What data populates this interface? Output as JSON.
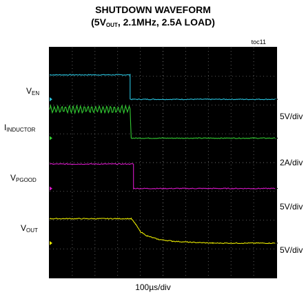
{
  "title_line1": "SHUTDOWN WAVEFORM",
  "title_line2_prefix": "(5V",
  "title_line2_sub": "OUT",
  "title_line2_suffix": ", 2.1MHz, 2.5A LOAD)",
  "figure_tag": "toc11",
  "x_scale": "100µs/div",
  "colors": {
    "background": "#000000",
    "frame": "#000000",
    "grid": "#c8c8c8",
    "grid_center": "#ffffff"
  },
  "chart_data": {
    "type": "line",
    "grid": true,
    "x_divisions": 10,
    "y_divisions": 8,
    "x_scale": "100µs/div",
    "series": [
      {
        "name_main": "V",
        "name_sub": "EN",
        "scale": "5V/div",
        "color": "#29c4df",
        "x": [
          0,
          3.55,
          3.55,
          10
        ],
        "y": [
          7.05,
          7.05,
          6.2,
          6.2
        ],
        "noise": "low"
      },
      {
        "name_main": "I",
        "name_sub": "INDUCTOR",
        "scale": "2A/div",
        "color": "#33cc33",
        "x": [
          0,
          3.55,
          3.6,
          10
        ],
        "y": [
          5.85,
          5.85,
          4.85,
          4.85
        ],
        "noise": "ripple"
      },
      {
        "name_main": "V",
        "name_sub": "PGOOD",
        "scale": "5V/div",
        "color": "#d818c8",
        "x": [
          0,
          3.7,
          3.7,
          10
        ],
        "y": [
          3.95,
          3.95,
          3.1,
          3.1
        ],
        "noise": "low"
      },
      {
        "name_main": "V",
        "name_sub": "OUT",
        "scale": "5V/div",
        "color": "#e8e800",
        "x": [
          0,
          3.6,
          3.8,
          4.0,
          4.3,
          4.8,
          5.4,
          6.2,
          7.2,
          10
        ],
        "y": [
          2.05,
          2.05,
          1.85,
          1.6,
          1.45,
          1.33,
          1.27,
          1.23,
          1.2,
          1.2
        ],
        "noise": "low"
      }
    ]
  }
}
